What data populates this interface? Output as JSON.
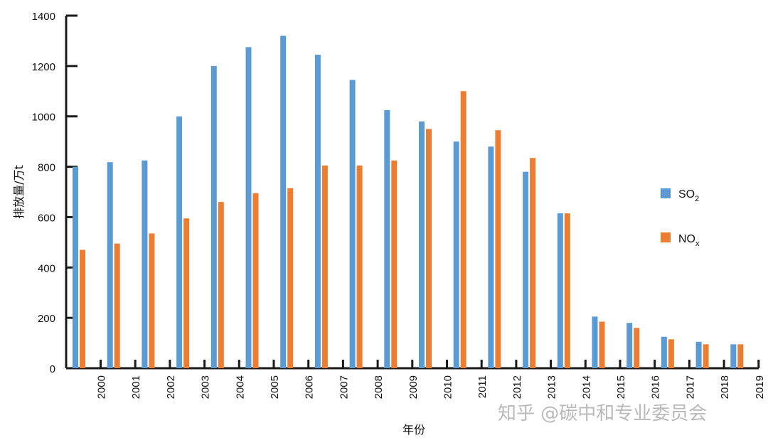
{
  "chart_data": {
    "type": "bar",
    "title": "",
    "xlabel": "年份",
    "ylabel": "排放量/万t",
    "ylim": [
      0,
      1400
    ],
    "yticks": [
      0,
      200,
      400,
      600,
      800,
      1000,
      1200,
      1400
    ],
    "categories": [
      "2000",
      "2001",
      "2002",
      "2003",
      "2004",
      "2005",
      "2006",
      "2007",
      "2008",
      "2009",
      "2010",
      "2011",
      "2012",
      "2013",
      "2014",
      "2015",
      "2016",
      "2017",
      "2018",
      "2019"
    ],
    "series": [
      {
        "name": "SO2",
        "legend_main": "SO",
        "legend_sub": "2",
        "color": "#5b9bd5",
        "values": [
          800,
          818,
          825,
          1000,
          1200,
          1275,
          1320,
          1245,
          1145,
          1025,
          980,
          900,
          880,
          780,
          615,
          205,
          180,
          125,
          105,
          95
        ]
      },
      {
        "name": "NOx",
        "legend_main": "NO",
        "legend_sub": "x",
        "color": "#ed7d31",
        "values": [
          470,
          495,
          535,
          595,
          660,
          695,
          715,
          805,
          805,
          825,
          950,
          1100,
          945,
          835,
          615,
          185,
          160,
          115,
          95,
          95
        ]
      }
    ],
    "legend_position": "right",
    "grid": false
  },
  "watermark": "知乎 @碳中和专业委员会",
  "colors": {
    "axis": "#1a1a1a",
    "watermark": "#b9b9b9"
  }
}
